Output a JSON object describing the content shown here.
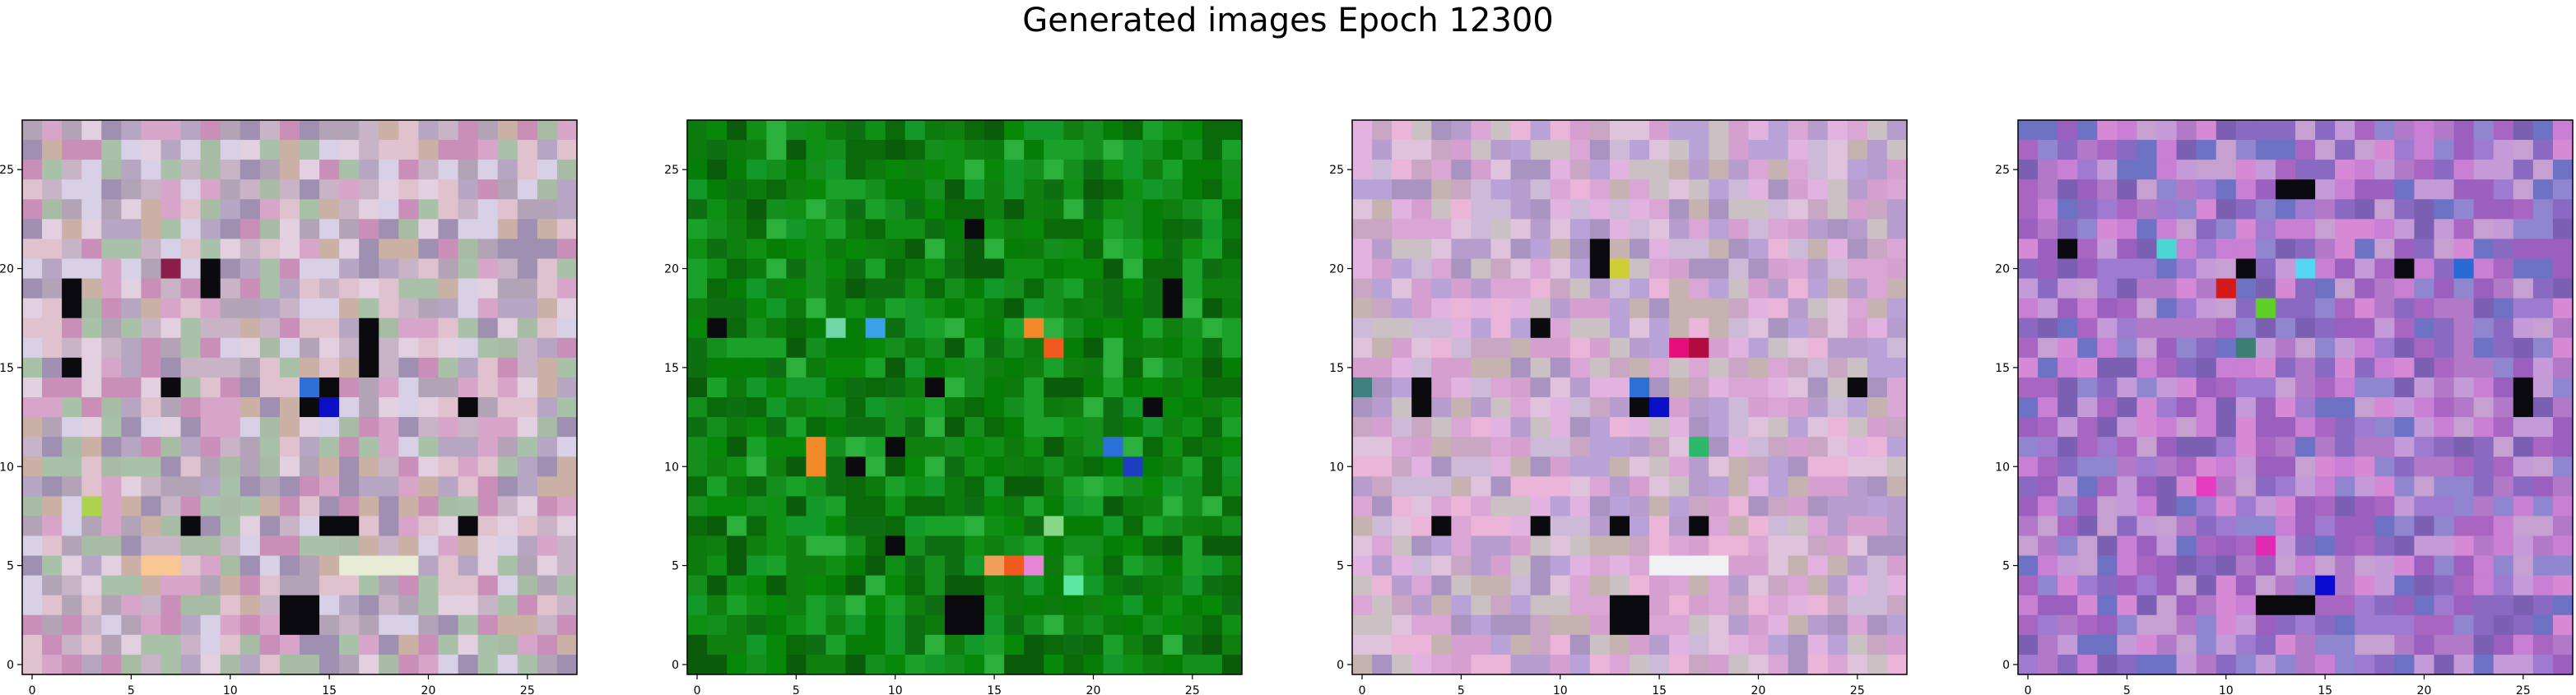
{
  "figure": {
    "title": "Generated images Epoch 12300"
  },
  "chart_data": [
    {
      "type": "heatmap",
      "colormap": "rgb-image",
      "grid_size": [
        28,
        28
      ],
      "x_ticks": [
        0,
        5,
        10,
        15,
        20,
        25
      ],
      "y_ticks": [
        0,
        5,
        10,
        15,
        20,
        25
      ],
      "xlim": [
        -0.5,
        27.5
      ],
      "ylim": [
        27.5,
        -0.5
      ],
      "palette": [
        "#c9b3c6",
        "#a9c1a9",
        "#d7a5c9",
        "#b7a5c4",
        "#e2cfe0",
        "#c98fb9",
        "#a7bba5",
        "#d8d0e6",
        "#b3a3b6",
        "#9f8fb1",
        "#cbb0a5",
        "#e0c2cf"
      ],
      "dark_cells": [
        [
          8,
          2
        ],
        [
          9,
          2
        ],
        [
          12,
          2
        ],
        [
          13,
          7
        ],
        [
          7,
          9
        ],
        [
          8,
          9
        ],
        [
          14,
          14
        ],
        [
          13,
          15
        ],
        [
          14,
          15
        ],
        [
          10,
          17
        ],
        [
          11,
          17
        ],
        [
          12,
          17
        ],
        [
          20,
          8
        ],
        [
          20,
          15
        ],
        [
          20,
          16
        ],
        [
          20,
          22
        ],
        [
          24,
          13
        ],
        [
          25,
          13
        ],
        [
          24,
          14
        ],
        [
          25,
          14
        ],
        [
          14,
          22
        ]
      ],
      "accent_cells": [
        [
          "#2d6fd4",
          [
            13,
            14
          ]
        ],
        [
          "#0b10c8",
          [
            14,
            15
          ]
        ],
        [
          "#8b1d4a",
          [
            7,
            7
          ]
        ],
        [
          "#f7c896",
          [
            22,
            6
          ]
        ],
        [
          "#f7c896",
          [
            22,
            7
          ]
        ],
        [
          "#aed24f",
          [
            19,
            3
          ]
        ],
        [
          "#e8ebd6",
          [
            22,
            16
          ]
        ],
        [
          "#e8ebd6",
          [
            22,
            17
          ]
        ],
        [
          "#e8ebd6",
          [
            22,
            18
          ]
        ],
        [
          "#e8ebd6",
          [
            22,
            19
          ]
        ]
      ]
    },
    {
      "type": "heatmap",
      "colormap": "rgb-image",
      "grid_size": [
        28,
        28
      ],
      "x_ticks": [
        0,
        5,
        10,
        15,
        20,
        25
      ],
      "y_ticks": [
        0,
        5,
        10,
        15,
        20,
        25
      ],
      "xlim": [
        -0.5,
        27.5
      ],
      "ylim": [
        27.5,
        -0.5
      ],
      "palette": [
        "#0c7a0c",
        "#0f8f14",
        "#0a6a0a",
        "#148f1e",
        "#067d06",
        "#1aa12a",
        "#0e6f12",
        "#2bb03c",
        "#088808",
        "#0a5c0a",
        "#12992a",
        "#0f7f0f"
      ],
      "dark_cells": [
        [
          5,
          14
        ],
        [
          10,
          1
        ],
        [
          14,
          23
        ],
        [
          13,
          12
        ],
        [
          16,
          10
        ],
        [
          17,
          8
        ],
        [
          21,
          10
        ],
        [
          24,
          13
        ],
        [
          25,
          13
        ],
        [
          24,
          14
        ],
        [
          25,
          14
        ],
        [
          8,
          24
        ],
        [
          9,
          24
        ]
      ],
      "accent_cells": [
        [
          "#f28a2a",
          [
            10,
            17
          ]
        ],
        [
          "#f05a1e",
          [
            11,
            18
          ]
        ],
        [
          "#f28a2a",
          [
            16,
            6
          ]
        ],
        [
          "#f28a2a",
          [
            17,
            6
          ]
        ],
        [
          "#6fd6a6",
          [
            10,
            7
          ]
        ],
        [
          "#3aa0e8",
          [
            10,
            9
          ]
        ],
        [
          "#2b6fd9",
          [
            16,
            21
          ]
        ],
        [
          "#1b3fbf",
          [
            17,
            22
          ]
        ],
        [
          "#f0a05a",
          [
            22,
            15
          ]
        ],
        [
          "#f05a1e",
          [
            22,
            16
          ]
        ],
        [
          "#86d886",
          [
            20,
            18
          ]
        ],
        [
          "#e884d6",
          [
            22,
            17
          ]
        ],
        [
          "#5de8a0",
          [
            23,
            19
          ]
        ]
      ]
    },
    {
      "type": "heatmap",
      "colormap": "rgb-image",
      "grid_size": [
        28,
        28
      ],
      "x_ticks": [
        0,
        5,
        10,
        15,
        20,
        25
      ],
      "y_ticks": [
        0,
        5,
        10,
        15,
        20,
        25
      ],
      "xlim": [
        -0.5,
        27.5
      ],
      "ylim": [
        27.5,
        -0.5
      ],
      "palette": [
        "#d9a6d5",
        "#c9a6c4",
        "#b79dcd",
        "#e2b3e0",
        "#cdbad9",
        "#a993c1",
        "#dfc2dc",
        "#c7b2b2",
        "#b8a2d8",
        "#eab5d8",
        "#cbc0c3",
        "#d59fd0"
      ],
      "dark_cells": [
        [
          7,
          12
        ],
        [
          14,
          14
        ],
        [
          14,
          15
        ],
        [
          13,
          3
        ],
        [
          14,
          3
        ],
        [
          10,
          9
        ],
        [
          20,
          4
        ],
        [
          20,
          9
        ],
        [
          20,
          13
        ],
        [
          20,
          17
        ],
        [
          24,
          13
        ],
        [
          25,
          13
        ],
        [
          24,
          14
        ],
        [
          25,
          14
        ],
        [
          13,
          25
        ],
        [
          6,
          12
        ]
      ],
      "accent_cells": [
        [
          "#0b10c8",
          [
            14,
            15
          ]
        ],
        [
          "#2d6fd4",
          [
            13,
            14
          ]
        ],
        [
          "#b30b3f",
          [
            11,
            17
          ]
        ],
        [
          "#e60f79",
          [
            11,
            16
          ]
        ],
        [
          "#2db86c",
          [
            16,
            17
          ]
        ],
        [
          "#3f7f7f",
          [
            13,
            0
          ]
        ],
        [
          "#f1f0f2",
          [
            22,
            15
          ]
        ],
        [
          "#f1f0f2",
          [
            22,
            16
          ]
        ],
        [
          "#f1f0f2",
          [
            22,
            17
          ]
        ],
        [
          "#f1f0f2",
          [
            22,
            18
          ]
        ],
        [
          "#d0ce37",
          [
            7,
            13
          ]
        ]
      ]
    },
    {
      "type": "heatmap",
      "colormap": "rgb-image",
      "grid_size": [
        28,
        28
      ],
      "x_ticks": [
        0,
        5,
        10,
        15,
        20,
        25
      ],
      "y_ticks": [
        0,
        5,
        10,
        15,
        20,
        25
      ],
      "xlim": [
        -0.5,
        27.5
      ],
      "ylim": [
        27.5,
        -0.5
      ],
      "palette": [
        "#b279c9",
        "#8a69c2",
        "#c97fd4",
        "#7b5fb3",
        "#d68ad6",
        "#9e7ad1",
        "#a866c2",
        "#6e72c4",
        "#c59ad9",
        "#9a5fbf",
        "#8f86cf",
        "#c6a0d0"
      ],
      "dark_cells": [
        [
          3,
          13
        ],
        [
          3,
          14
        ],
        [
          7,
          11
        ],
        [
          7,
          19
        ],
        [
          13,
          25
        ],
        [
          14,
          25
        ],
        [
          24,
          12
        ],
        [
          24,
          13
        ],
        [
          24,
          14
        ],
        [
          6,
          2
        ]
      ],
      "accent_cells": [
        [
          "#d41919",
          [
            8,
            10
          ]
        ],
        [
          "#2a6ad4",
          [
            7,
            22
          ]
        ],
        [
          "#0a0ad0",
          [
            23,
            15
          ]
        ],
        [
          "#56d6f0",
          [
            7,
            14
          ]
        ],
        [
          "#e83cc0",
          [
            18,
            9
          ]
        ],
        [
          "#5fcf2a",
          [
            9,
            12
          ]
        ],
        [
          "#4dd4d4",
          [
            6,
            7
          ]
        ],
        [
          "#3d7d74",
          [
            11,
            11
          ]
        ],
        [
          "#e02bb2",
          [
            21,
            12
          ]
        ]
      ]
    }
  ]
}
